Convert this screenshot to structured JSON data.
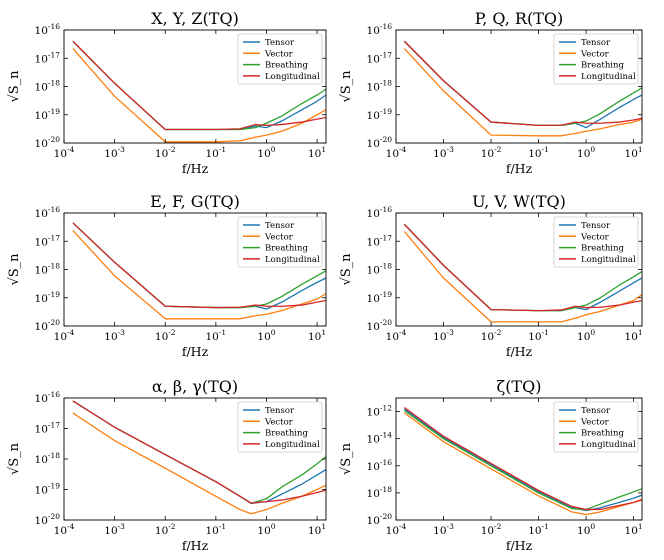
{
  "figure": {
    "panels": [
      {
        "title": "X, Y, Z(TQ)",
        "xlabel": "f/Hz",
        "ylabel": "√S_n"
      },
      {
        "title": "P, Q, R(TQ)",
        "xlabel": "f/Hz",
        "ylabel": "√S_n"
      },
      {
        "title": "E, F, G(TQ)",
        "xlabel": "f/Hz",
        "ylabel": "√S_n"
      },
      {
        "title": "U, V, W(TQ)",
        "xlabel": "f/Hz",
        "ylabel": "√S_n"
      },
      {
        "title": "α, β, γ(TQ)",
        "xlabel": "f/Hz",
        "ylabel": "√S_n"
      },
      {
        "title": "ζ(TQ)",
        "xlabel": "f/Hz",
        "ylabel": "√S_n"
      }
    ],
    "legend": [
      "Tensor",
      "Vector",
      "Breathing",
      "Longitudinal"
    ],
    "colors": {
      "Tensor": "#1f77b4",
      "Vector": "#ff7f0e",
      "Breathing": "#2ca02c",
      "Longitudinal": "#d62728"
    }
  },
  "chart_data": [
    {
      "type": "line",
      "title": "X, Y, Z(TQ)",
      "xlabel": "f/Hz",
      "ylabel": "√S_n",
      "xscale": "log",
      "yscale": "log",
      "xlim": [
        0.0001,
        15
      ],
      "ylim": [
        1e-20,
        1e-16
      ],
      "xticks": [
        0.0001,
        0.001,
        0.01,
        0.1,
        1,
        10
      ],
      "xticklabels": [
        "10^-4",
        "10^-3",
        "10^-2",
        "10^-1",
        "10^0",
        "10^1"
      ],
      "yticks": [
        1e-20,
        1e-19,
        1e-18,
        1e-17,
        1e-16
      ],
      "yticklabels": [
        "10^-20",
        "10^-19",
        "10^-18",
        "10^-17",
        "10^-16"
      ],
      "legend_position": "top-right",
      "grid": false,
      "series": [
        {
          "name": "Tensor",
          "x": [
            0.00015,
            0.001,
            0.01,
            0.1,
            0.3,
            0.6,
            1,
            2,
            5,
            10,
            15
          ],
          "y": [
            4e-17,
            1.3e-18,
            3e-20,
            3e-20,
            3e-20,
            4e-20,
            3.5e-20,
            6e-20,
            1.5e-19,
            3e-19,
            5e-19
          ]
        },
        {
          "name": "Vector",
          "x": [
            0.00015,
            0.001,
            0.01,
            0.1,
            0.3,
            0.6,
            1,
            2,
            5,
            10,
            15
          ],
          "y": [
            2.2e-17,
            4.5e-19,
            1.1e-20,
            1.1e-20,
            1.2e-20,
            1.6e-20,
            1.9e-20,
            2.6e-20,
            5e-20,
            1e-19,
            1.5e-19
          ]
        },
        {
          "name": "Breathing",
          "x": [
            0.00015,
            0.001,
            0.01,
            0.1,
            0.3,
            0.6,
            1,
            2,
            5,
            10,
            15
          ],
          "y": [
            4e-17,
            1.3e-18,
            3e-20,
            3e-20,
            3e-20,
            3.5e-20,
            5e-20,
            9e-20,
            2.5e-19,
            5e-19,
            8e-19
          ]
        },
        {
          "name": "Longitudinal",
          "x": [
            0.00015,
            0.001,
            0.01,
            0.1,
            0.3,
            0.6,
            1,
            2,
            5,
            10,
            15
          ],
          "y": [
            4e-17,
            1.3e-18,
            3e-20,
            3e-20,
            3.2e-20,
            4.5e-20,
            4.2e-20,
            4.5e-20,
            5.5e-20,
            7e-20,
            8e-20
          ]
        }
      ]
    },
    {
      "type": "line",
      "title": "P, Q, R(TQ)",
      "xlabel": "f/Hz",
      "ylabel": "√S_n",
      "xscale": "log",
      "yscale": "log",
      "xlim": [
        0.0001,
        15
      ],
      "ylim": [
        1e-20,
        1e-16
      ],
      "xticks": [
        0.0001,
        0.001,
        0.01,
        0.1,
        1,
        10
      ],
      "xticklabels": [
        "10^-4",
        "10^-3",
        "10^-2",
        "10^-1",
        "10^0",
        "10^1"
      ],
      "yticks": [
        1e-20,
        1e-19,
        1e-18,
        1e-17,
        1e-16
      ],
      "yticklabels": [
        "10^-20",
        "10^-19",
        "10^-18",
        "10^-17",
        "10^-16"
      ],
      "legend_position": "top-right",
      "grid": false,
      "series": [
        {
          "name": "Tensor",
          "x": [
            0.00015,
            0.001,
            0.01,
            0.1,
            0.3,
            0.6,
            1,
            2,
            5,
            10,
            15
          ],
          "y": [
            4e-17,
            1.6e-18,
            5.5e-20,
            4.2e-20,
            4.2e-20,
            5e-20,
            3.5e-20,
            7e-20,
            1.8e-19,
            3.5e-19,
            5e-19
          ]
        },
        {
          "name": "Vector",
          "x": [
            0.00015,
            0.001,
            0.01,
            0.1,
            0.3,
            0.6,
            1,
            2,
            5,
            10,
            15
          ],
          "y": [
            2.2e-17,
            7e-19,
            1.9e-20,
            1.8e-20,
            1.8e-20,
            2.2e-20,
            2.6e-20,
            3.2e-20,
            4.5e-20,
            5.5e-20,
            7e-20
          ]
        },
        {
          "name": "Breathing",
          "x": [
            0.00015,
            0.001,
            0.01,
            0.1,
            0.3,
            0.6,
            1,
            2,
            5,
            10,
            15
          ],
          "y": [
            4e-17,
            1.6e-18,
            5.5e-20,
            4.2e-20,
            4.2e-20,
            5e-20,
            6e-20,
            1.1e-19,
            3e-19,
            6e-19,
            9e-19
          ]
        },
        {
          "name": "Longitudinal",
          "x": [
            0.00015,
            0.001,
            0.01,
            0.1,
            0.3,
            0.6,
            1,
            2,
            5,
            10,
            15
          ],
          "y": [
            4e-17,
            1.6e-18,
            5.5e-20,
            4.2e-20,
            4.3e-20,
            5.5e-20,
            5e-20,
            5e-20,
            5.5e-20,
            6.5e-20,
            7.5e-20
          ]
        }
      ]
    },
    {
      "type": "line",
      "title": "E, F, G(TQ)",
      "xlabel": "f/Hz",
      "ylabel": "√S_n",
      "xscale": "log",
      "yscale": "log",
      "xlim": [
        0.0001,
        15
      ],
      "ylim": [
        1e-20,
        1e-16
      ],
      "xticks": [
        0.0001,
        0.001,
        0.01,
        0.1,
        1,
        10
      ],
      "xticklabels": [
        "10^-4",
        "10^-3",
        "10^-2",
        "10^-1",
        "10^0",
        "10^1"
      ],
      "yticks": [
        1e-20,
        1e-19,
        1e-18,
        1e-17,
        1e-16
      ],
      "yticklabels": [
        "10^-20",
        "10^-19",
        "10^-18",
        "10^-17",
        "10^-16"
      ],
      "legend_position": "top-right",
      "grid": false,
      "series": [
        {
          "name": "Tensor",
          "x": [
            0.00015,
            0.001,
            0.01,
            0.1,
            0.3,
            0.6,
            1,
            2,
            5,
            10,
            15
          ],
          "y": [
            4.5e-17,
            1.8e-18,
            5e-20,
            4.5e-20,
            4.5e-20,
            5e-20,
            4e-20,
            7e-20,
            1.8e-19,
            3.5e-19,
            5e-19
          ]
        },
        {
          "name": "Vector",
          "x": [
            0.00015,
            0.001,
            0.01,
            0.1,
            0.3,
            0.6,
            1,
            2,
            5,
            10,
            15
          ],
          "y": [
            2.4e-17,
            6e-19,
            1.8e-20,
            1.8e-20,
            1.8e-20,
            2.3e-20,
            2.6e-20,
            3.5e-20,
            6e-20,
            9e-20,
            1.4e-19
          ]
        },
        {
          "name": "Breathing",
          "x": [
            0.00015,
            0.001,
            0.01,
            0.1,
            0.3,
            0.6,
            1,
            2,
            5,
            10,
            15
          ],
          "y": [
            4.5e-17,
            1.8e-18,
            5e-20,
            4.5e-20,
            4.5e-20,
            5e-20,
            6e-20,
            1.1e-19,
            3e-19,
            6e-19,
            9e-19
          ]
        },
        {
          "name": "Longitudinal",
          "x": [
            0.00015,
            0.001,
            0.01,
            0.1,
            0.3,
            0.6,
            1,
            2,
            5,
            10,
            15
          ],
          "y": [
            4.5e-17,
            1.8e-18,
            5e-20,
            4.5e-20,
            4.6e-20,
            5.5e-20,
            5e-20,
            5e-20,
            5.5e-20,
            7e-20,
            8e-20
          ]
        }
      ]
    },
    {
      "type": "line",
      "title": "U, V, W(TQ)",
      "xlabel": "f/Hz",
      "ylabel": "√S_n",
      "xscale": "log",
      "yscale": "log",
      "xlim": [
        0.0001,
        15
      ],
      "ylim": [
        1e-20,
        1e-16
      ],
      "xticks": [
        0.0001,
        0.001,
        0.01,
        0.1,
        1,
        10
      ],
      "xticklabels": [
        "10^-4",
        "10^-3",
        "10^-2",
        "10^-1",
        "10^0",
        "10^1"
      ],
      "yticks": [
        1e-20,
        1e-19,
        1e-18,
        1e-17,
        1e-16
      ],
      "yticklabels": [
        "10^-20",
        "10^-19",
        "10^-18",
        "10^-17",
        "10^-16"
      ],
      "legend_position": "top-right",
      "grid": false,
      "series": [
        {
          "name": "Tensor",
          "x": [
            0.00015,
            0.001,
            0.01,
            0.1,
            0.3,
            0.6,
            1,
            2,
            5,
            10,
            15
          ],
          "y": [
            4e-17,
            1.4e-18,
            3.8e-20,
            3.5e-20,
            3.5e-20,
            4.5e-20,
            3.8e-20,
            7e-20,
            1.7e-19,
            3.4e-19,
            5e-19
          ]
        },
        {
          "name": "Vector",
          "x": [
            0.00015,
            0.001,
            0.01,
            0.1,
            0.3,
            0.6,
            1,
            2,
            5,
            10,
            15
          ],
          "y": [
            2.2e-17,
            5e-19,
            1.4e-20,
            1.4e-20,
            1.4e-20,
            1.9e-20,
            2.5e-20,
            3.3e-20,
            5.5e-20,
            8e-20,
            1.3e-19
          ]
        },
        {
          "name": "Breathing",
          "x": [
            0.00015,
            0.001,
            0.01,
            0.1,
            0.3,
            0.6,
            1,
            2,
            5,
            10,
            15
          ],
          "y": [
            4e-17,
            1.4e-18,
            3.8e-20,
            3.5e-20,
            3.5e-20,
            4.5e-20,
            5.5e-20,
            1e-19,
            2.8e-19,
            5.5e-19,
            8.5e-19
          ]
        },
        {
          "name": "Longitudinal",
          "x": [
            0.00015,
            0.001,
            0.01,
            0.1,
            0.3,
            0.6,
            1,
            2,
            5,
            10,
            15
          ],
          "y": [
            4e-17,
            1.4e-18,
            3.8e-20,
            3.5e-20,
            3.7e-20,
            5e-20,
            4.5e-20,
            4.6e-20,
            5.5e-20,
            7e-20,
            8e-20
          ]
        }
      ]
    },
    {
      "type": "line",
      "title": "α, β, γ(TQ)",
      "xlabel": "f/Hz",
      "ylabel": "√S_n",
      "xscale": "log",
      "yscale": "log",
      "xlim": [
        0.0001,
        15
      ],
      "ylim": [
        1e-20,
        1e-16
      ],
      "xticks": [
        0.0001,
        0.001,
        0.01,
        0.1,
        1,
        10
      ],
      "xticklabels": [
        "10^-4",
        "10^-3",
        "10^-2",
        "10^-1",
        "10^0",
        "10^1"
      ],
      "yticks": [
        1e-20,
        1e-19,
        1e-18,
        1e-17,
        1e-16
      ],
      "yticklabels": [
        "10^-20",
        "10^-19",
        "10^-18",
        "10^-17",
        "10^-16"
      ],
      "legend_position": "top-right",
      "grid": false,
      "series": [
        {
          "name": "Tensor",
          "x": [
            0.00015,
            0.001,
            0.01,
            0.1,
            0.3,
            0.5,
            1,
            2,
            5,
            10,
            15
          ],
          "y": [
            8e-17,
            1.1e-17,
            1.4e-18,
            1.8e-19,
            6e-20,
            3.5e-20,
            4e-20,
            7e-20,
            1.5e-19,
            3e-19,
            4.5e-19
          ]
        },
        {
          "name": "Vector",
          "x": [
            0.00015,
            0.001,
            0.01,
            0.1,
            0.3,
            0.5,
            1,
            2,
            5,
            10,
            15
          ],
          "y": [
            3.2e-17,
            4e-18,
            5e-19,
            6e-20,
            2.2e-20,
            1.6e-20,
            2.2e-20,
            3.5e-20,
            6e-20,
            1e-19,
            1.4e-19
          ]
        },
        {
          "name": "Breathing",
          "x": [
            0.00015,
            0.001,
            0.01,
            0.1,
            0.3,
            0.5,
            1,
            2,
            5,
            10,
            15
          ],
          "y": [
            8e-17,
            1.1e-17,
            1.4e-18,
            1.8e-19,
            6e-20,
            3.5e-20,
            5e-20,
            1.2e-19,
            3e-19,
            7e-19,
            1.2e-18
          ]
        },
        {
          "name": "Longitudinal",
          "x": [
            0.00015,
            0.001,
            0.01,
            0.1,
            0.3,
            0.5,
            1,
            2,
            5,
            10,
            15
          ],
          "y": [
            8e-17,
            1.1e-17,
            1.4e-18,
            1.8e-19,
            6e-20,
            3.6e-20,
            4e-20,
            4.5e-20,
            6e-20,
            8e-20,
            9.5e-20
          ]
        }
      ]
    },
    {
      "type": "line",
      "title": "ζ(TQ)",
      "xlabel": "f/Hz",
      "ylabel": "√S_n",
      "xscale": "log",
      "yscale": "log",
      "xlim": [
        0.0001,
        15
      ],
      "ylim": [
        1e-20,
        1e-11
      ],
      "xticks": [
        0.0001,
        0.001,
        0.01,
        0.1,
        1,
        10
      ],
      "xticklabels": [
        "10^-4",
        "10^-3",
        "10^-2",
        "10^-1",
        "10^0",
        "10^1"
      ],
      "yticks": [
        1e-20,
        1e-18,
        1e-16,
        1e-14,
        1e-12
      ],
      "yticklabels": [
        "10^-20",
        "10^-18",
        "10^-16",
        "10^-14",
        "10^-12"
      ],
      "legend_position": "top-right",
      "grid": false,
      "series": [
        {
          "name": "Tensor",
          "x": [
            0.00015,
            0.001,
            0.01,
            0.1,
            0.5,
            1,
            2,
            5,
            10,
            15
          ],
          "y": [
            1.6e-12,
            1.2e-14,
            1.2e-16,
            1.2e-18,
            8e-20,
            5e-20,
            8e-20,
            2e-19,
            4e-19,
            7e-19
          ]
        },
        {
          "name": "Vector",
          "x": [
            0.00015,
            0.001,
            0.01,
            0.1,
            0.5,
            1,
            2,
            5,
            10,
            15
          ],
          "y": [
            8e-13,
            6e-15,
            6e-17,
            6e-19,
            4e-20,
            2.5e-20,
            4e-20,
            1e-19,
            2e-19,
            3.5e-19
          ]
        },
        {
          "name": "Breathing",
          "x": [
            0.00015,
            0.001,
            0.01,
            0.1,
            0.5,
            1,
            2,
            5,
            10,
            15
          ],
          "y": [
            1.2e-12,
            1e-14,
            1e-16,
            1e-18,
            7e-20,
            6e-20,
            1.5e-19,
            5e-19,
            1.2e-18,
            2e-18
          ]
        },
        {
          "name": "Longitudinal",
          "x": [
            0.00015,
            0.001,
            0.01,
            0.1,
            0.5,
            1,
            2,
            5,
            10,
            15
          ],
          "y": [
            2e-12,
            1.5e-14,
            1.5e-16,
            1.5e-18,
            1e-19,
            6e-20,
            6e-20,
            1.2e-19,
            2e-19,
            3e-19
          ]
        }
      ]
    }
  ]
}
